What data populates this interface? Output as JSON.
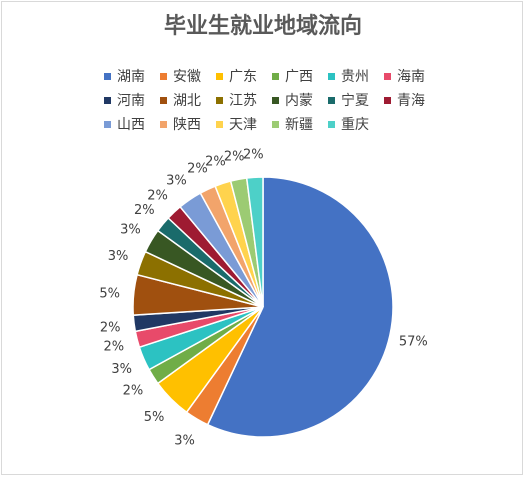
{
  "chart_data": {
    "type": "pie",
    "title": "毕业生就业地域流向",
    "legend_position": "top",
    "categories": [
      "湖南",
      "安徽",
      "广东",
      "广西",
      "贵州",
      "海南",
      "河南",
      "湖北",
      "江苏",
      "内蒙",
      "宁夏",
      "青海",
      "山西",
      "陕西",
      "天津",
      "新疆",
      "重庆"
    ],
    "values": [
      57,
      3,
      5,
      2,
      3,
      2,
      2,
      5,
      3,
      3,
      2,
      2,
      3,
      2,
      2,
      2,
      2
    ],
    "labels": [
      "57%",
      "3%",
      "5%",
      "2%",
      "3%",
      "2%",
      "2%",
      "5%",
      "3%",
      "3%",
      "2%",
      "2%",
      "3%",
      "2%",
      "2%",
      "2%",
      "2%"
    ],
    "colors": [
      "#4472C4",
      "#ED7D31",
      "#FFC000",
      "#70AD47",
      "#2CC2C2",
      "#E84A6A",
      "#203864",
      "#A0500F",
      "#8C7000",
      "#385723",
      "#1A6B6B",
      "#9E1B32",
      "#7A9BD6",
      "#F2A46B",
      "#FFD34D",
      "#9CCB73",
      "#4DD0C8"
    ]
  }
}
